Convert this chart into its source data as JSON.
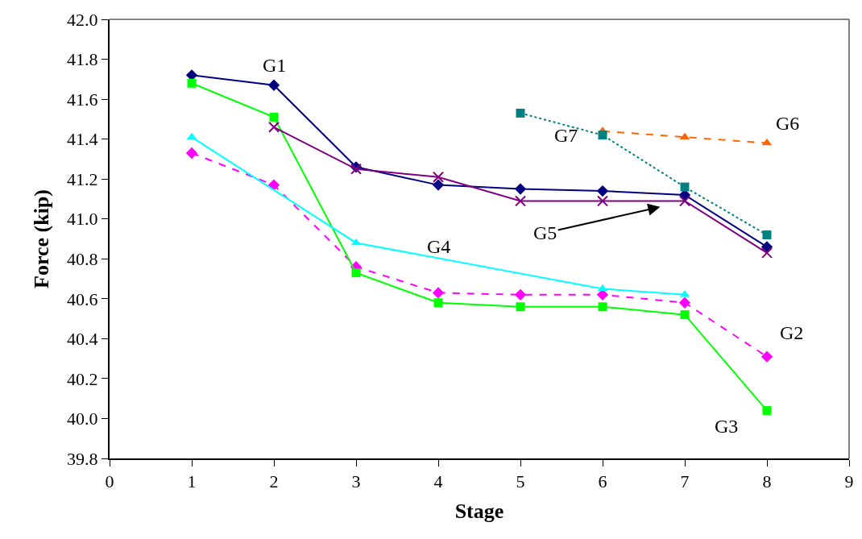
{
  "chart_data": {
    "type": "line",
    "xlabel": "Stage",
    "ylabel": "Force (kip)",
    "x": [
      1,
      2,
      3,
      4,
      5,
      6,
      7,
      8
    ],
    "xlim": [
      0,
      9
    ],
    "xticks": [
      0,
      1,
      2,
      3,
      4,
      5,
      6,
      7,
      8,
      9
    ],
    "ylim": [
      39.8,
      42.0
    ],
    "yticks": [
      {
        "value": 39.8,
        "label": "39.8"
      },
      {
        "value": 40.0,
        "label": "40.0"
      },
      {
        "value": 40.2,
        "label": "40.2"
      },
      {
        "value": 40.4,
        "label": "40.4"
      },
      {
        "value": 40.6,
        "label": "40.6"
      },
      {
        "value": 40.8,
        "label": "40.8"
      },
      {
        "value": 41.0,
        "label": "41.0"
      },
      {
        "value": 41.2,
        "label": "41.2"
      },
      {
        "value": 41.4,
        "label": "41.4"
      },
      {
        "value": 41.6,
        "label": "41.6"
      },
      {
        "value": 41.8,
        "label": "41.8"
      },
      {
        "value": 42.0,
        "label": "42.0"
      }
    ],
    "legend": false,
    "series": [
      {
        "name": "G1",
        "color": "#000080",
        "marker": "diamond",
        "line_style": "solid",
        "values": [
          41.72,
          41.67,
          41.26,
          41.17,
          41.15,
          41.14,
          41.12,
          40.86
        ]
      },
      {
        "name": "G2",
        "color": "#ff00ff",
        "marker": "diamond",
        "line_style": "dashed",
        "values": [
          41.33,
          41.17,
          40.76,
          40.63,
          40.62,
          40.62,
          40.58,
          40.31
        ]
      },
      {
        "name": "G3",
        "color": "#00ff00",
        "marker": "square",
        "line_style": "solid",
        "values": [
          41.68,
          41.51,
          40.73,
          40.58,
          40.56,
          40.56,
          40.52,
          40.04
        ]
      },
      {
        "name": "G4",
        "color": "#00ffff",
        "marker": "triangle",
        "line_style": "solid",
        "values": [
          41.41,
          null,
          40.88,
          null,
          null,
          40.65,
          40.62,
          null
        ]
      },
      {
        "name": "G5",
        "color": "#800080",
        "marker": "cross",
        "line_style": "solid",
        "values": [
          null,
          41.46,
          41.25,
          41.21,
          41.09,
          41.09,
          41.09,
          40.83
        ]
      },
      {
        "name": "G6",
        "color": "#ff6600",
        "marker": "triangle",
        "line_style": "dashed",
        "values": [
          null,
          null,
          null,
          null,
          null,
          41.44,
          41.41,
          41.38
        ]
      },
      {
        "name": "G7",
        "color": "#008080",
        "marker": "square",
        "line_style": "dotted",
        "values": [
          null,
          null,
          null,
          null,
          41.53,
          41.42,
          41.16,
          40.92
        ]
      }
    ]
  }
}
